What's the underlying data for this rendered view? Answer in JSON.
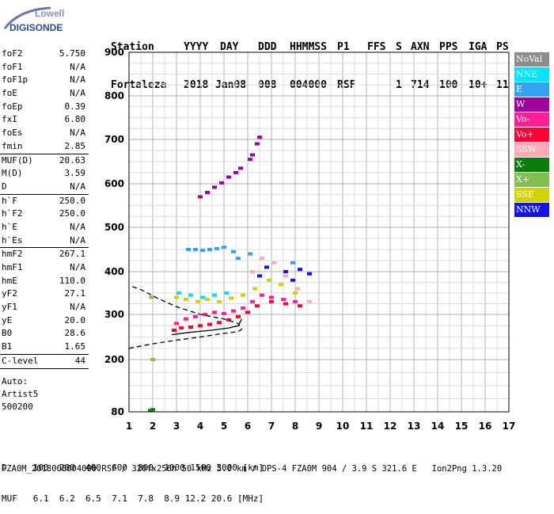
{
  "logo": {
    "line1": "Lowell",
    "line2": "DIGISONDE"
  },
  "header": {
    "row1": [
      "Station",
      "YYYY",
      "DAY",
      "DDD",
      "HHMMSS",
      "P1",
      "FFS",
      "S",
      "AXN",
      "PPS",
      "IGA",
      "PS"
    ],
    "row2": [
      "Fortaleza",
      "2018",
      "Jan08",
      "008",
      "004000",
      "RSF",
      "",
      "1",
      "714",
      "100",
      "10+",
      "11"
    ]
  },
  "params_group1": [
    {
      "name": "foF2",
      "value": "5.750"
    },
    {
      "name": "foF1",
      "value": "N/A"
    },
    {
      "name": "foF1p",
      "value": "N/A"
    },
    {
      "name": "foE",
      "value": "N/A"
    },
    {
      "name": "foEp",
      "value": "0.39"
    },
    {
      "name": "fxI",
      "value": "6.80"
    },
    {
      "name": "foEs",
      "value": "N/A"
    },
    {
      "name": "fmin",
      "value": "2.85"
    }
  ],
  "params_group2": [
    {
      "name": "MUF(D)",
      "value": "20.63"
    },
    {
      "name": "M(D)",
      "value": "3.59"
    },
    {
      "name": "D",
      "value": "N/A"
    }
  ],
  "params_group3": [
    {
      "name": "h`F",
      "value": "250.0"
    },
    {
      "name": "h`F2",
      "value": "250.0"
    },
    {
      "name": "h`E",
      "value": "N/A"
    },
    {
      "name": "h`Es",
      "value": "N/A"
    }
  ],
  "params_group4": [
    {
      "name": "hmF2",
      "value": "267.1"
    },
    {
      "name": "hmF1",
      "value": "N/A"
    },
    {
      "name": "hmE",
      "value": "110.0"
    },
    {
      "name": "yF2",
      "value": "27.1"
    },
    {
      "name": "yF1",
      "value": "N/A"
    },
    {
      "name": "yE",
      "value": "20.0"
    },
    {
      "name": "B0",
      "value": "28.6"
    },
    {
      "name": "B1",
      "value": "1.65"
    }
  ],
  "params_group5": [
    {
      "name": "C-level",
      "value": "44"
    }
  ],
  "status": {
    "line1": "Auto:",
    "line2": "Artist5",
    "line3": "500200"
  },
  "legend": [
    {
      "label": "NoVal",
      "color": "#8c8c8c",
      "text_color": "#ffffff"
    },
    {
      "label": "NNE",
      "color": "#00e5ff",
      "text_color": "#ffffff"
    },
    {
      "label": "E",
      "color": "#33a3f0",
      "text_color": "#ffffff"
    },
    {
      "label": "W",
      "color": "#a0009e",
      "text_color": "#ffffff"
    },
    {
      "label": "Vo-",
      "color": "#ff1e96",
      "text_color": "#ffffff"
    },
    {
      "label": "Vo+",
      "color": "#ff0030",
      "text_color": "#ffffff"
    },
    {
      "label": "SSW",
      "color": "#ffaab4",
      "text_color": "#ffffff"
    },
    {
      "label": "X-",
      "color": "#0a7d0a",
      "text_color": "#ffffff"
    },
    {
      "label": "X+",
      "color": "#82be50",
      "text_color": "#ffffff"
    },
    {
      "label": "SSE",
      "color": "#d2d200",
      "text_color": "#ffffff"
    },
    {
      "label": "NNW",
      "color": "#1414e6",
      "text_color": "#ffffff"
    }
  ],
  "bottom": {
    "d_row": "D     100  200  400  600  800  1000 1500 3000 [km]",
    "muf_row": "MUF   6.1  6.2  6.5  7.1  7.8  8.9 12.2 20.6 [MHz]"
  },
  "footer": "FZA0M_2018008004000.RSF / 320fx256h 50 kHz 5.0 km / DPS-4 FZA0M 904 / 3.9 S 321.6 E   Ion2Png 1.3.20",
  "chart_data": {
    "type": "scatter",
    "title": "",
    "xlabel": "",
    "ylabel": "",
    "xlim": [
      1,
      17
    ],
    "ylim": [
      80,
      900
    ],
    "x_ticks": [
      1,
      2,
      3,
      4,
      5,
      6,
      7,
      8,
      9,
      10,
      11,
      12,
      13,
      14,
      15,
      16,
      17
    ],
    "y_ticks": [
      80,
      200,
      300,
      400,
      500,
      600,
      700,
      800,
      900
    ],
    "grid": true,
    "scale": "frequency(MHz) vs virtual height(km), non-linear height axis",
    "series": [
      {
        "name": "W",
        "color": "#a0009e",
        "points": [
          [
            4.0,
            570
          ],
          [
            4.3,
            580
          ],
          [
            4.6,
            592
          ],
          [
            4.9,
            602
          ],
          [
            5.2,
            615
          ],
          [
            5.5,
            625
          ],
          [
            5.7,
            635
          ],
          [
            6.1,
            655
          ],
          [
            6.2,
            665
          ],
          [
            6.4,
            690
          ],
          [
            6.5,
            705
          ]
        ]
      },
      {
        "name": "E",
        "color": "#33a3f0",
        "points": [
          [
            3.5,
            450
          ],
          [
            3.8,
            450
          ],
          [
            4.1,
            448
          ],
          [
            4.4,
            450
          ],
          [
            4.7,
            452
          ],
          [
            5.0,
            455
          ],
          [
            5.4,
            445
          ],
          [
            5.6,
            430
          ],
          [
            6.1,
            440
          ],
          [
            7.9,
            420
          ]
        ]
      },
      {
        "name": "NNW",
        "color": "#1414e6",
        "points": [
          [
            6.5,
            390
          ],
          [
            6.8,
            410
          ],
          [
            7.6,
            400
          ],
          [
            7.9,
            380
          ],
          [
            8.2,
            405
          ],
          [
            8.6,
            395
          ]
        ]
      },
      {
        "name": "Vo-",
        "color": "#ff1e96",
        "points": [
          [
            3.0,
            280
          ],
          [
            3.4,
            290
          ],
          [
            3.8,
            295
          ],
          [
            4.2,
            300
          ],
          [
            4.6,
            305
          ],
          [
            5.0,
            302
          ],
          [
            5.4,
            308
          ],
          [
            5.8,
            315
          ],
          [
            6.2,
            330
          ],
          [
            6.6,
            345
          ],
          [
            7.0,
            340
          ],
          [
            7.5,
            335
          ],
          [
            8.0,
            330
          ]
        ]
      },
      {
        "name": "Vo+",
        "color": "#ff0030",
        "points": [
          [
            2.9,
            265
          ],
          [
            3.2,
            270
          ],
          [
            3.6,
            272
          ],
          [
            4.0,
            275
          ],
          [
            4.4,
            278
          ],
          [
            4.8,
            282
          ],
          [
            5.2,
            288
          ],
          [
            5.6,
            295
          ],
          [
            6.0,
            305
          ],
          [
            6.4,
            320
          ],
          [
            7.0,
            330
          ],
          [
            7.6,
            325
          ],
          [
            8.2,
            320
          ]
        ]
      },
      {
        "name": "SSE",
        "color": "#d2d200",
        "points": [
          [
            3.0,
            340
          ],
          [
            3.4,
            335
          ],
          [
            3.9,
            330
          ],
          [
            4.3,
            335
          ],
          [
            4.8,
            330
          ],
          [
            5.3,
            338
          ],
          [
            5.8,
            345
          ],
          [
            6.3,
            360
          ],
          [
            6.9,
            380
          ],
          [
            7.4,
            370
          ],
          [
            8.0,
            350
          ]
        ]
      },
      {
        "name": "SSW",
        "color": "#ffaab4",
        "points": [
          [
            6.2,
            400
          ],
          [
            6.6,
            430
          ],
          [
            7.1,
            420
          ],
          [
            7.6,
            390
          ],
          [
            8.1,
            360
          ],
          [
            8.6,
            330
          ]
        ]
      },
      {
        "name": "NNE",
        "color": "#00e5ff",
        "points": [
          [
            3.1,
            350
          ],
          [
            3.6,
            345
          ],
          [
            4.1,
            340
          ],
          [
            4.6,
            345
          ],
          [
            5.1,
            350
          ]
        ]
      },
      {
        "name": "X-",
        "color": "#0a7d0a",
        "points": [
          [
            1.9,
            83
          ],
          [
            2.0,
            85
          ]
        ]
      },
      {
        "name": "X+",
        "color": "#82be50",
        "points": [
          [
            1.95,
            340
          ],
          [
            2.0,
            200
          ]
        ]
      }
    ],
    "profile_curve": {
      "name": "ne_profile",
      "points": [
        [
          1.0,
          225
        ],
        [
          2.0,
          235
        ],
        [
          3.0,
          243
        ],
        [
          4.0,
          250
        ],
        [
          5.0,
          258
        ],
        [
          5.6,
          262
        ],
        [
          5.75,
          267
        ],
        [
          5.6,
          280
        ],
        [
          5.0,
          290
        ],
        [
          4.0,
          300
        ],
        [
          3.0,
          318
        ],
        [
          2.2,
          338
        ],
        [
          1.5,
          358
        ],
        [
          1.0,
          368
        ]
      ]
    },
    "trace_curve": {
      "name": "f2_trace",
      "points": [
        [
          2.8,
          255
        ],
        [
          3.5,
          260
        ],
        [
          4.5,
          265
        ],
        [
          5.2,
          270
        ],
        [
          5.6,
          275
        ],
        [
          5.75,
          290
        ]
      ]
    }
  }
}
